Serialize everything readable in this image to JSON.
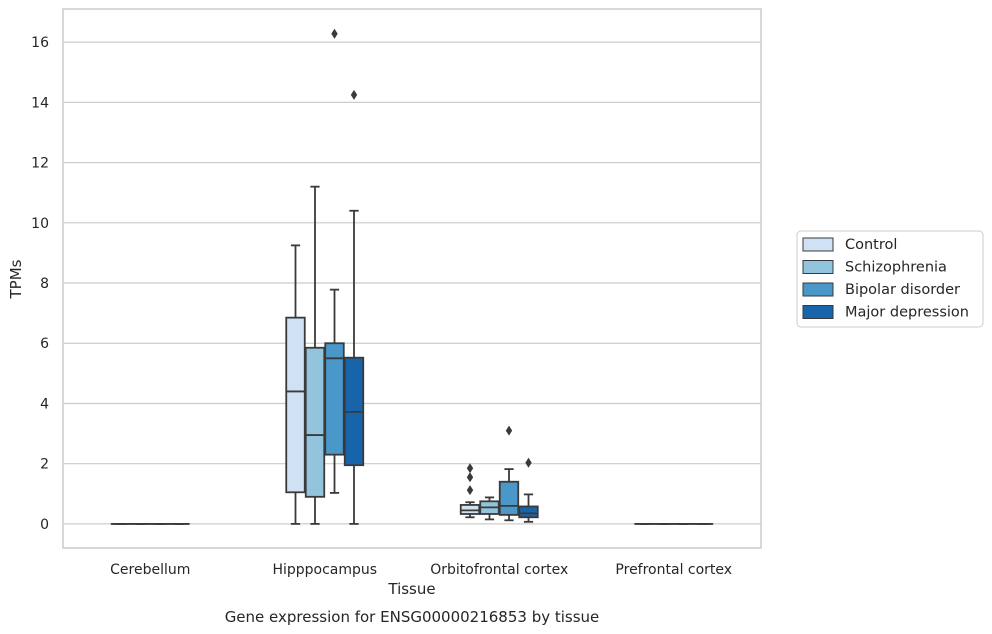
{
  "chart_data": {
    "type": "box",
    "title": "",
    "caption": "Gene expression for ENSG00000216853 by tissue",
    "xlabel": "Tissue",
    "ylabel": "TPMs",
    "ylim": [
      -0.8,
      17.1
    ],
    "yticks": [
      0,
      2,
      4,
      6,
      8,
      10,
      12,
      14,
      16
    ],
    "grid": "horizontal",
    "legend_position": "right",
    "categories": [
      "Cerebellum",
      "Hipppocampus",
      "Orbitofrontal cortex",
      "Prefrontal cortex"
    ],
    "series": [
      {
        "name": "Control",
        "color": "#cfe1f2",
        "boxes": [
          {
            "min": 0,
            "q1": 0,
            "median": 0,
            "q3": 0,
            "max": 0,
            "outliers": []
          },
          {
            "min": 0,
            "q1": 1.05,
            "median": 4.4,
            "q3": 6.85,
            "max": 9.25,
            "outliers": []
          },
          {
            "min": 0.22,
            "q1": 0.33,
            "median": 0.45,
            "q3": 0.63,
            "max": 0.72,
            "outliers": [
              1.12,
              1.55,
              1.85
            ]
          },
          {
            "min": 0,
            "q1": 0,
            "median": 0,
            "q3": 0,
            "max": 0,
            "outliers": []
          }
        ]
      },
      {
        "name": "Schizophrenia",
        "color": "#93c4de",
        "boxes": [
          {
            "min": 0,
            "q1": 0,
            "median": 0,
            "q3": 0,
            "max": 0,
            "outliers": []
          },
          {
            "min": 0,
            "q1": 0.9,
            "median": 2.95,
            "q3": 5.85,
            "max": 11.2,
            "outliers": []
          },
          {
            "min": 0.15,
            "q1": 0.33,
            "median": 0.55,
            "q3": 0.75,
            "max": 0.88,
            "outliers": []
          },
          {
            "min": 0,
            "q1": 0,
            "median": 0,
            "q3": 0,
            "max": 0,
            "outliers": []
          }
        ]
      },
      {
        "name": "Bipolar disorder",
        "color": "#4a98c9",
        "boxes": [
          {
            "min": 0,
            "q1": 0,
            "median": 0,
            "q3": 0,
            "max": 0,
            "outliers": []
          },
          {
            "min": 1.03,
            "q1": 2.3,
            "median": 5.5,
            "q3": 6.0,
            "max": 7.78,
            "outliers": [
              16.28
            ]
          },
          {
            "min": 0.12,
            "q1": 0.3,
            "median": 0.6,
            "q3": 1.4,
            "max": 1.82,
            "outliers": [
              3.1
            ]
          },
          {
            "min": 0,
            "q1": 0,
            "median": 0,
            "q3": 0,
            "max": 0,
            "outliers": []
          }
        ]
      },
      {
        "name": "Major depression",
        "color": "#1764ab",
        "boxes": [
          {
            "min": 0,
            "q1": 0,
            "median": 0,
            "q3": 0,
            "max": 0,
            "outliers": []
          },
          {
            "min": 0,
            "q1": 1.95,
            "median": 3.72,
            "q3": 5.52,
            "max": 10.4,
            "outliers": [
              14.25
            ]
          },
          {
            "min": 0.07,
            "q1": 0.22,
            "median": 0.35,
            "q3": 0.58,
            "max": 0.98,
            "outliers": [
              2.03
            ]
          },
          {
            "min": 0,
            "q1": 0,
            "median": 0,
            "q3": 0,
            "max": 0,
            "outliers": []
          }
        ]
      }
    ]
  }
}
